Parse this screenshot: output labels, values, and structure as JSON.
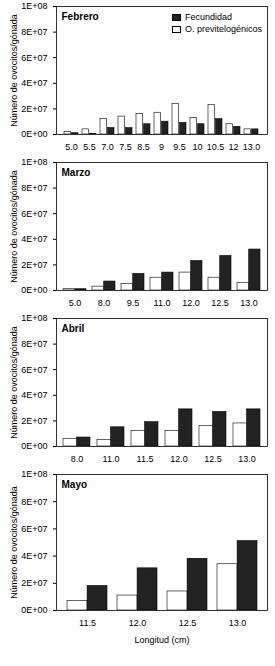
{
  "chart_data": [
    {
      "type": "bar",
      "title": "Febrero",
      "ylabel": "Número de ovocitos/gónada",
      "categories": [
        "5.0",
        "5.5",
        "7.0",
        "7.5",
        "8.5",
        "9",
        "9.5",
        "10",
        "10.5",
        "12",
        "13.0"
      ],
      "series": [
        {
          "name": "Fecundidad",
          "color": "#222222",
          "values": [
            1000000,
            500000,
            5000000,
            5000000,
            8000000,
            10000000,
            9000000,
            8000000,
            12000000,
            6000000,
            4000000
          ]
        },
        {
          "name": "O. previtelogénicos",
          "color": "#ffffff",
          "values": [
            2000000,
            4000000,
            12000000,
            14000000,
            16000000,
            17000000,
            24000000,
            13000000,
            23000000,
            8000000,
            4000000
          ]
        }
      ],
      "ylim": [
        0,
        100000000
      ],
      "yticks": [
        {
          "value": 0,
          "label": "0E+00"
        },
        {
          "value": 20000000,
          "label": "2E+07"
        },
        {
          "value": 40000000,
          "label": "4E+07"
        },
        {
          "value": 60000000,
          "label": "6E+07"
        },
        {
          "value": 80000000,
          "label": "8E+07"
        },
        {
          "value": 100000000,
          "label": "1E+08"
        }
      ],
      "legend": "top-right"
    },
    {
      "type": "bar",
      "title": "Marzo",
      "ylabel": "Número de ovocitos/gónada",
      "categories": [
        "5.0",
        "8.0",
        "9.5",
        "11.0",
        "12.0",
        "12.5",
        "13.0"
      ],
      "series": [
        {
          "name": "Fecundidad",
          "color": "#222222",
          "values": [
            1000000,
            7000000,
            13000000,
            14000000,
            23000000,
            27000000,
            32000000
          ]
        },
        {
          "name": "O. previtelogénicos",
          "color": "#ffffff",
          "values": [
            1000000,
            3000000,
            5000000,
            10000000,
            14000000,
            10000000,
            6000000
          ]
        }
      ],
      "ylim": [
        0,
        100000000
      ],
      "yticks": [
        {
          "value": 0,
          "label": "0E+00"
        },
        {
          "value": 20000000,
          "label": "2E+07"
        },
        {
          "value": 40000000,
          "label": "4E+07"
        },
        {
          "value": 60000000,
          "label": "6E+07"
        },
        {
          "value": 80000000,
          "label": "8E+07"
        },
        {
          "value": 100000000,
          "label": "1E+08"
        }
      ]
    },
    {
      "type": "bar",
      "title": "Abril",
      "ylabel": "Número de ovocitos/gónada",
      "categories": [
        "8.0",
        "11.0",
        "11.5",
        "12.0",
        "12.5",
        "13.0"
      ],
      "series": [
        {
          "name": "Fecundidad",
          "color": "#222222",
          "values": [
            7000000,
            15000000,
            19000000,
            29000000,
            27000000,
            29000000
          ]
        },
        {
          "name": "O. previtelogénicos",
          "color": "#ffffff",
          "values": [
            6000000,
            5000000,
            12000000,
            12000000,
            16000000,
            18000000
          ]
        }
      ],
      "ylim": [
        0,
        100000000
      ],
      "yticks": [
        {
          "value": 0,
          "label": "0E+00"
        },
        {
          "value": 20000000,
          "label": "2E+07"
        },
        {
          "value": 40000000,
          "label": "4E+07"
        },
        {
          "value": 60000000,
          "label": "6E+07"
        },
        {
          "value": 80000000,
          "label": "8E+07"
        },
        {
          "value": 100000000,
          "label": "1E+08"
        }
      ]
    },
    {
      "type": "bar",
      "title": "Mayo",
      "ylabel": "Número de ovocitos/gónada",
      "xlabel": "Longitud (cm)",
      "categories": [
        "11.5",
        "12.0",
        "12.5",
        "13.0"
      ],
      "series": [
        {
          "name": "Fecundidad",
          "color": "#222222",
          "values": [
            18000000,
            31000000,
            38000000,
            51000000
          ]
        },
        {
          "name": "O. previtelogénicos",
          "color": "#ffffff",
          "values": [
            7000000,
            11000000,
            14000000,
            34000000
          ]
        }
      ],
      "ylim": [
        0,
        100000000
      ],
      "yticks": [
        {
          "value": 0,
          "label": "0E+00"
        },
        {
          "value": 20000000,
          "label": "2E+07"
        },
        {
          "value": 40000000,
          "label": "4E+07"
        },
        {
          "value": 60000000,
          "label": "6E+07"
        },
        {
          "value": 80000000,
          "label": "8E+07"
        },
        {
          "value": 100000000,
          "label": "1E+08"
        }
      ]
    }
  ]
}
